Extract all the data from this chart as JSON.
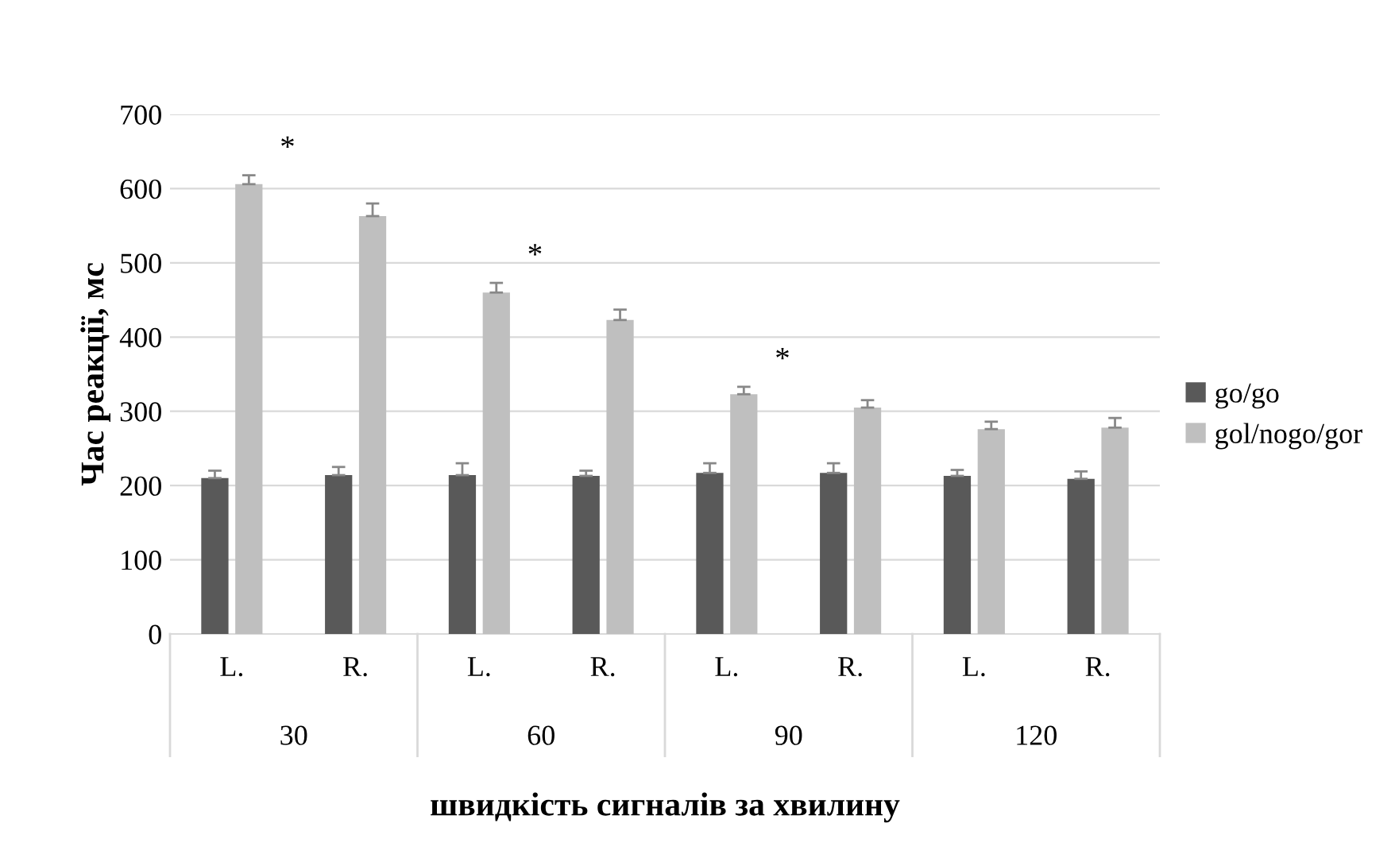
{
  "chart_data": {
    "type": "bar",
    "ylabel": "Час реакції, мс",
    "xlabel": "швидкість сигналів за хвилину",
    "categories": [
      "L.",
      "R.",
      "L.",
      "R.",
      "L.",
      "R.",
      "L.",
      "R."
    ],
    "series": [
      {
        "name": "go/go",
        "color": "#595959",
        "values": [
          210,
          214,
          214,
          213,
          217,
          217,
          213,
          209
        ],
        "errors": [
          10,
          11,
          16,
          7,
          13,
          13,
          8,
          10
        ]
      },
      {
        "name": "gol/nogo/gor",
        "color": "#bfbfbf",
        "values": [
          606,
          563,
          460,
          423,
          323,
          305,
          276,
          278
        ],
        "errors": [
          12,
          17,
          13,
          14,
          10,
          10,
          10,
          13
        ]
      }
    ],
    "annotations": [
      "*",
      "*",
      "*",
      "30",
      "60",
      "90",
      "120"
    ],
    "ylim": [
      0,
      700
    ],
    "yticks": [
      0,
      100,
      200,
      300,
      400,
      500,
      600,
      700
    ],
    "grid": "y",
    "legend": "right"
  }
}
